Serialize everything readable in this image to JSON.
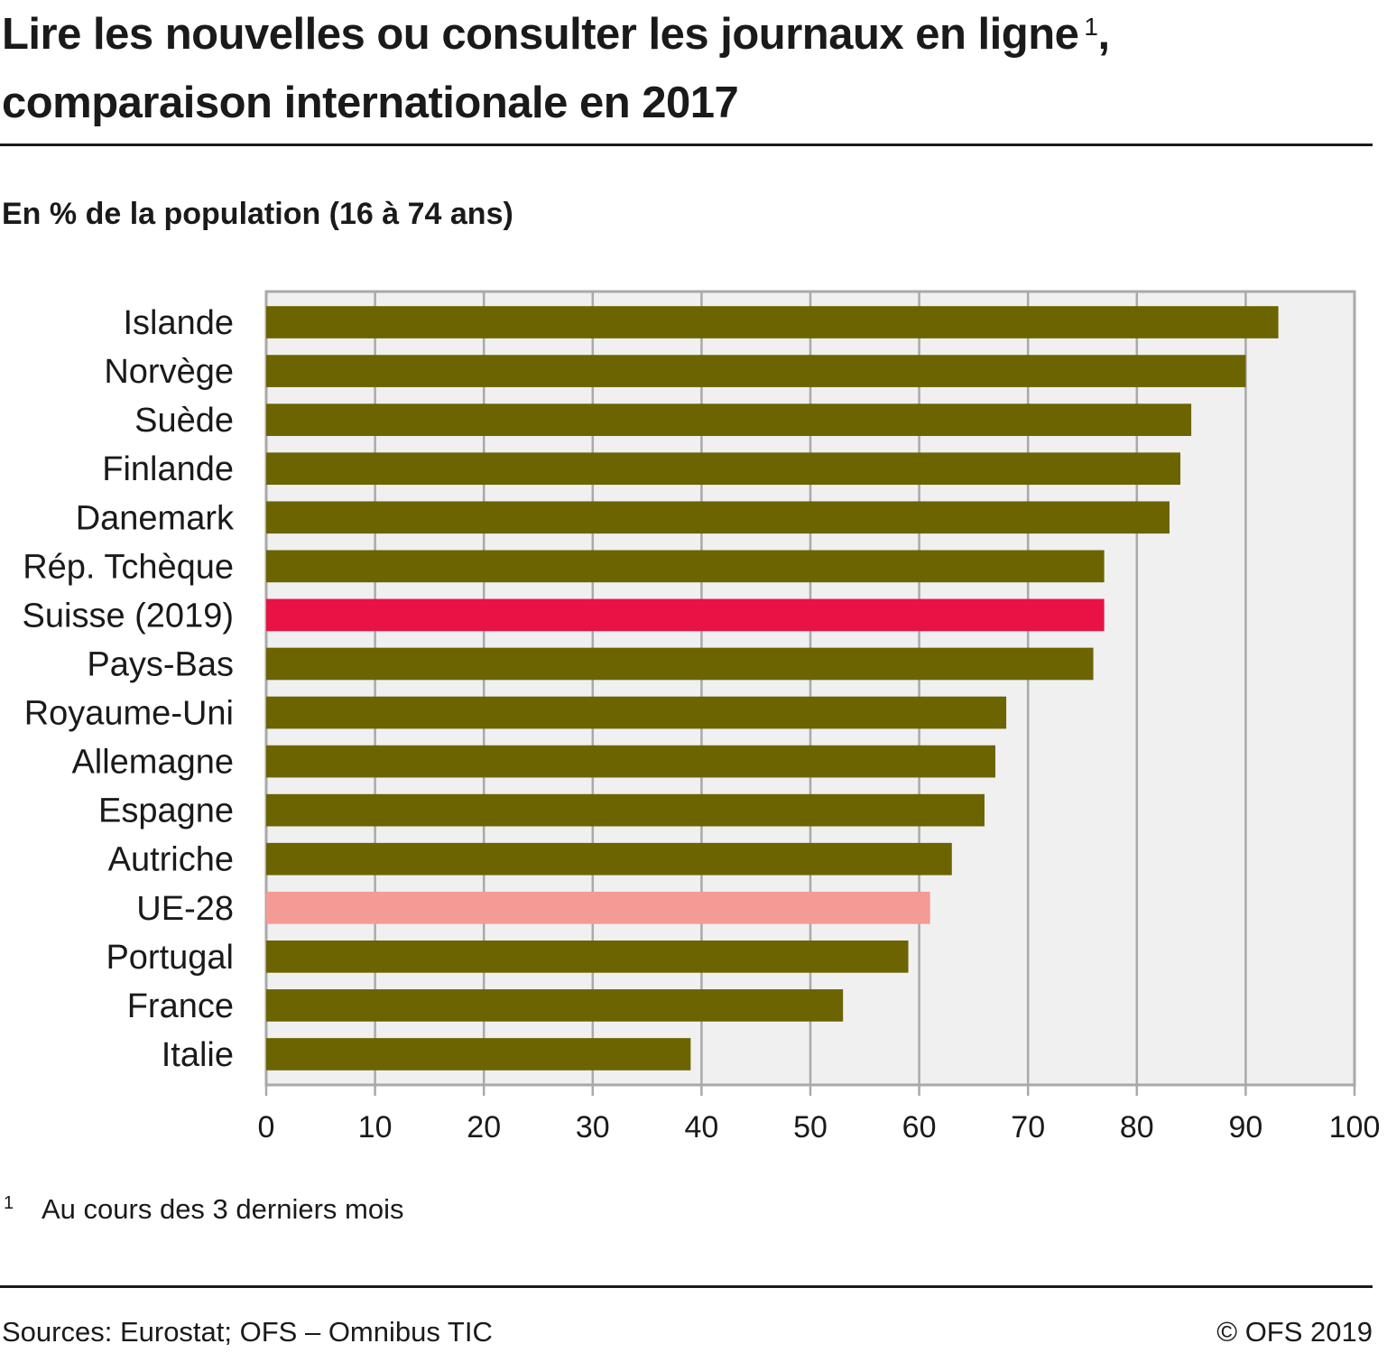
{
  "header": {
    "title_line1": "Lire les nouvelles ou consulter les journaux en ligne",
    "title_sup": "1",
    "title_comma": ",",
    "title_line2": "comparaison internationale en 2017",
    "subtitle": "En % de la population (16 à 74 ans)"
  },
  "footnote": {
    "number": "1",
    "text": "Au cours des 3 derniers mois"
  },
  "footer": {
    "source": "Sources: Eurostat; OFS – Omnibus TIC",
    "copyright": "© OFS 2019"
  },
  "colors": {
    "default_bar": "#6b6400",
    "highlight_bar": "#e81244",
    "eu_bar": "#f59a94",
    "plot_bg": "#f0f0f0",
    "grid": "#a9a9a9"
  },
  "chart_data": {
    "type": "bar",
    "orientation": "horizontal",
    "categories": [
      "Islande",
      "Norvège",
      "Suède",
      "Finlande",
      "Danemark",
      "Rép. Tchèque",
      "Suisse (2019)",
      "Pays-Bas",
      "Royaume-Uni",
      "Allemagne",
      "Espagne",
      "Autriche",
      "UE-28",
      "Portugal",
      "France",
      "Italie"
    ],
    "values": [
      93,
      90,
      85,
      84,
      83,
      77,
      77,
      76,
      68,
      67,
      66,
      63,
      61,
      59,
      53,
      39
    ],
    "highlight": {
      "Suisse (2019)": "highlight",
      "UE-28": "eu"
    },
    "xlim": [
      0,
      100
    ],
    "xticks": [
      0,
      10,
      20,
      30,
      40,
      50,
      60,
      70,
      80,
      90,
      100
    ],
    "grid": "vertical"
  }
}
